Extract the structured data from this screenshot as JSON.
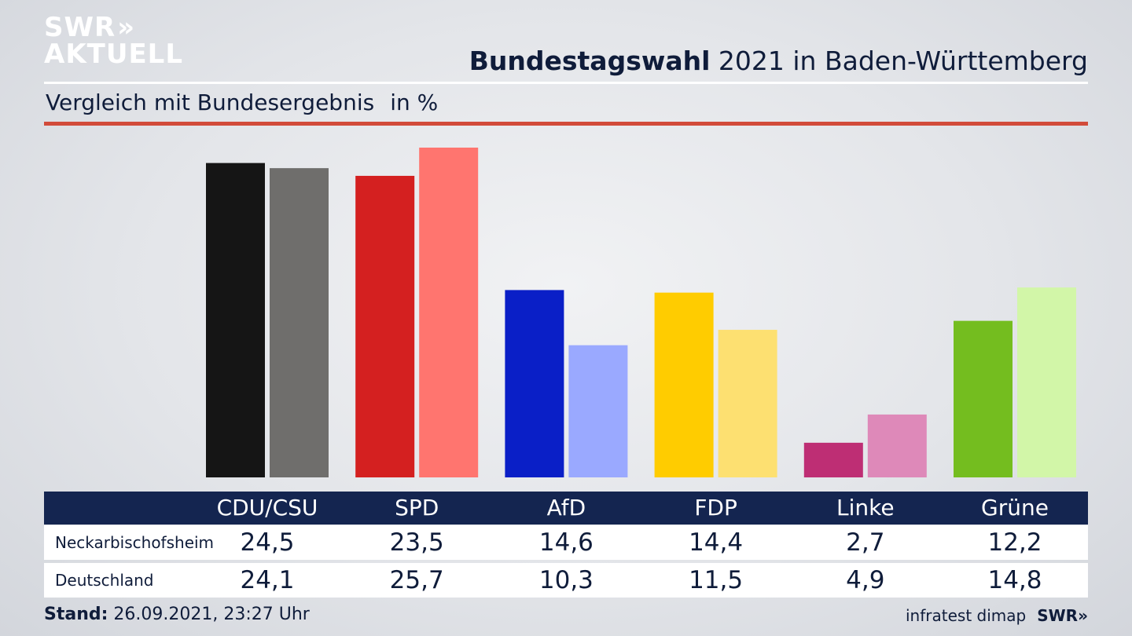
{
  "brand": {
    "logo_line1": "SWR",
    "logo_line2": "AKTUELL",
    "logo_chevrons": "»",
    "footer_logo": "SWR»",
    "source": "infratest dimap"
  },
  "header": {
    "title_bold": "Bundestagswahl",
    "title_rest": "2021 in Baden-Württemberg",
    "subtitle": "Vergleich mit Bundesergebnis",
    "unit": "in %"
  },
  "footer": {
    "stand_label": "Stand:",
    "stand_value": "26.09.2021, 23:27 Uhr"
  },
  "table": {
    "rows": [
      {
        "label": "Neckarbischofsheim",
        "values": [
          "24,5",
          "23,5",
          "14,6",
          "14,4",
          "2,7",
          "12,2"
        ]
      },
      {
        "label": "Deutschland",
        "values": [
          "24,1",
          "25,7",
          "10,3",
          "11,5",
          "4,9",
          "14,8"
        ]
      }
    ]
  },
  "chart_data": {
    "type": "bar",
    "categories": [
      "CDU/CSU",
      "SPD",
      "AfD",
      "FDP",
      "Linke",
      "Grüne"
    ],
    "series": [
      {
        "name": "Neckarbischofsheim",
        "values": [
          24.5,
          23.5,
          14.6,
          14.4,
          2.7,
          12.2
        ],
        "colors": [
          "#151515",
          "#d42020",
          "#0a1fc7",
          "#ffcc00",
          "#be2e74",
          "#74bd1f"
        ]
      },
      {
        "name": "Deutschland",
        "values": [
          24.1,
          25.7,
          10.3,
          11.5,
          4.9,
          14.8
        ],
        "colors": [
          "#6f6e6c",
          "#ff756f",
          "#9aa9ff",
          "#fde071",
          "#de89b9",
          "#d2f6a8"
        ]
      }
    ],
    "ylim": [
      0,
      25.7
    ],
    "grid": false,
    "legend": "table-below"
  }
}
